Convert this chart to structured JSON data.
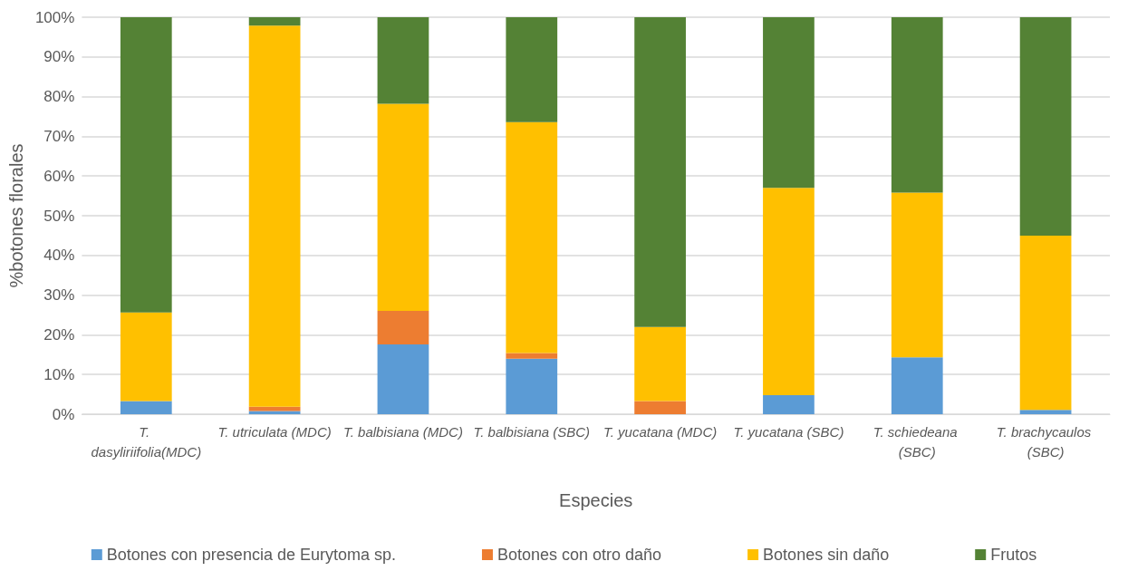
{
  "chart_data": {
    "type": "bar",
    "stacked": true,
    "xlabel": "Especies",
    "ylabel": "%botones florales",
    "categories": [
      "T. dasyliriifolia(MDC)",
      "T. utriculata (MDC)",
      "T. balbisiana (MDC)",
      "T. balbisiana (SBC)",
      "T. yucatana (MDC)",
      "T. yucatana (SBC)",
      "T. schiedeana (SBC)",
      "T. brachycaulos (SBC)"
    ],
    "series": [
      {
        "name": "Botones con presencia de Eurytoma sp.",
        "color": "#5b9bd5",
        "values": [
          3.3,
          0.8,
          17.6,
          14.0,
          0,
          4.8,
          14.3,
          1.1
        ]
      },
      {
        "name": "Botones con otro daño",
        "color": "#ed7d31",
        "values": [
          0,
          1.1,
          8.4,
          1.4,
          3.3,
          0,
          0,
          0
        ]
      },
      {
        "name": "Botones sin daño",
        "color": "#ffc000",
        "values": [
          22.3,
          96.0,
          52.2,
          58.2,
          18.7,
          52.2,
          41.5,
          43.9
        ]
      },
      {
        "name": "Frutos",
        "color": "#548235",
        "values": [
          74.4,
          2.1,
          21.8,
          26.4,
          78.0,
          43.0,
          44.2,
          55.0
        ]
      }
    ],
    "ylim": [
      0,
      100
    ],
    "yticks": [
      {
        "value": 0,
        "label": "0%"
      },
      {
        "value": 10,
        "label": "10%"
      },
      {
        "value": 20,
        "label": "20%"
      },
      {
        "value": 30,
        "label": "30%"
      },
      {
        "value": 40,
        "label": "40%"
      },
      {
        "value": 50,
        "label": "50%"
      },
      {
        "value": 60,
        "label": "60%"
      },
      {
        "value": 70,
        "label": "70%"
      },
      {
        "value": 80,
        "label": "80%"
      },
      {
        "value": 90,
        "label": "90%"
      },
      {
        "value": 100,
        "label": "100%"
      }
    ],
    "grid": "y",
    "legend": "bottom"
  }
}
